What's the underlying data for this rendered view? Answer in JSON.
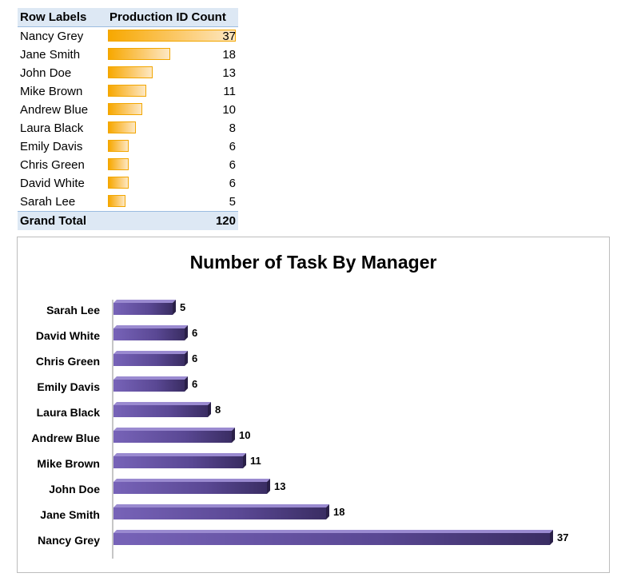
{
  "pivot": {
    "header": {
      "row_labels": "Row Labels",
      "count": "Production ID Count"
    },
    "rows": [
      {
        "label": "Nancy Grey",
        "value": 37
      },
      {
        "label": "Jane Smith",
        "value": 18
      },
      {
        "label": "John Doe",
        "value": 13
      },
      {
        "label": "Mike Brown",
        "value": 11
      },
      {
        "label": "Andrew Blue",
        "value": 10
      },
      {
        "label": "Laura Black",
        "value": 8
      },
      {
        "label": "Emily Davis",
        "value": 6
      },
      {
        "label": "Chris Green",
        "value": 6
      },
      {
        "label": "David White",
        "value": 6
      },
      {
        "label": "Sarah Lee",
        "value": 5
      }
    ],
    "grand_total": {
      "label": "Grand Total",
      "value": 120
    },
    "bar_color": "#f7a800"
  },
  "chart_data": {
    "type": "bar",
    "orientation": "horizontal",
    "title": "Number of Task By Manager",
    "categories": [
      "Sarah Lee",
      "David White",
      "Chris Green",
      "Emily Davis",
      "Laura Black",
      "Andrew Blue",
      "Mike Brown",
      "John Doe",
      "Jane Smith",
      "Nancy Grey"
    ],
    "values": [
      5,
      6,
      6,
      6,
      8,
      10,
      11,
      13,
      18,
      37
    ],
    "data_labels": true,
    "xlim": [
      0,
      37
    ],
    "grid": false,
    "legend": "none",
    "bar_color": "#6a55a6",
    "bar_color_dark": "#3a2d63"
  }
}
